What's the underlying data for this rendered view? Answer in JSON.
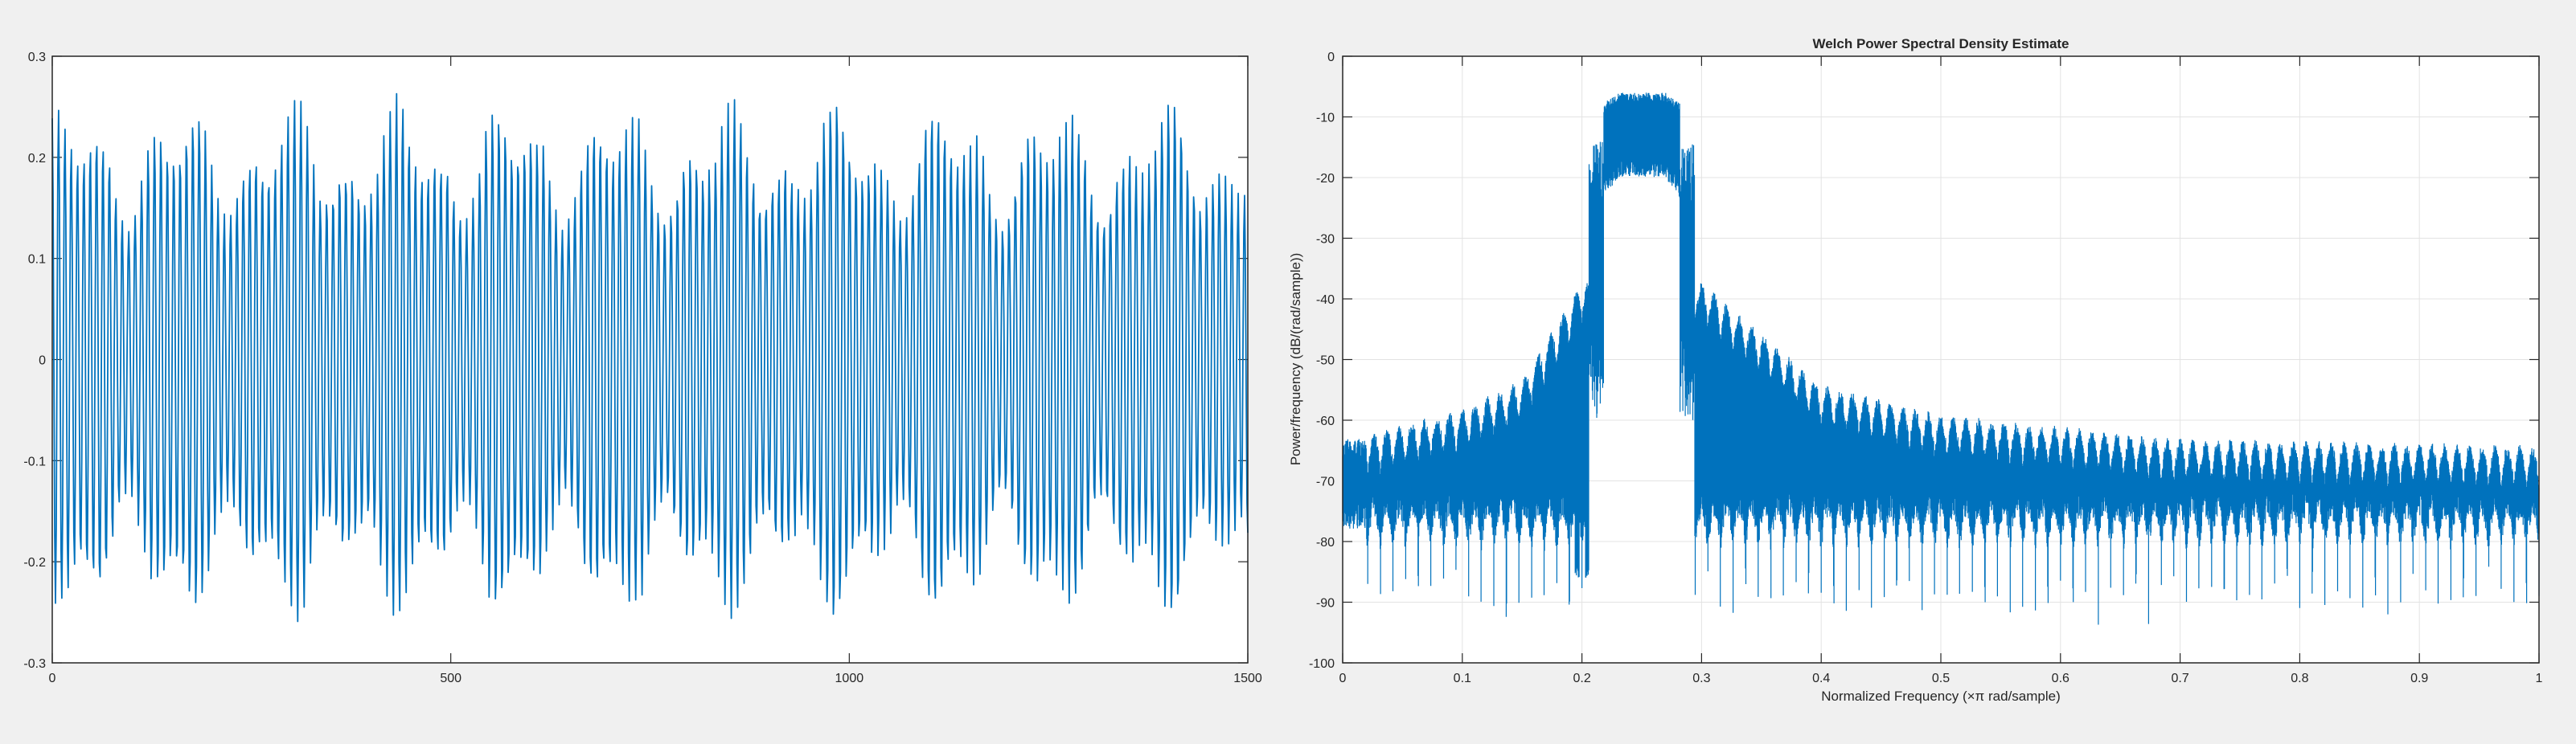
{
  "figure": {
    "background": "#f0f0f0",
    "axes_background": "#ffffff",
    "line_color": "#0072bd",
    "grid_color": "#e3e3e3",
    "axis_color": "#262626"
  },
  "chart_data": [
    {
      "type": "line",
      "title": "",
      "xlabel": "",
      "ylabel": "",
      "xlim": [
        0,
        1500
      ],
      "ylim": [
        -0.3,
        0.3
      ],
      "xticks": [
        0,
        500,
        1000,
        1500
      ],
      "yticks": [
        -0.3,
        -0.2,
        -0.1,
        0,
        0.1,
        0.2,
        0.3
      ],
      "xtick_labels": [
        "0",
        "500",
        "1000",
        "1500"
      ],
      "ytick_labels": [
        "-0.3",
        "-0.2",
        "-0.1",
        "0",
        "0.1",
        "0.2",
        "0.3"
      ],
      "grid": false,
      "series": [
        {
          "color": "#0072bd",
          "n_samples": 1500,
          "peak_amplitude_range": [
            0.13,
            0.26
          ],
          "dominant_normalized_frequency": 0.25,
          "description_of_values": "narrowband oscillation around 0 with beating envelope, amplitudes mostly within ±0.26"
        }
      ]
    },
    {
      "type": "line",
      "title": "Welch Power Spectral Density Estimate",
      "xlabel": "Normalized Frequency  (×π rad/sample)",
      "ylabel": "Power/frequency (dB/(rad/sample))",
      "xlim": [
        0,
        1
      ],
      "ylim": [
        -100,
        0
      ],
      "xticks": [
        0,
        0.1,
        0.2,
        0.3,
        0.4,
        0.5,
        0.6,
        0.7,
        0.8,
        0.9,
        1
      ],
      "yticks": [
        -100,
        -90,
        -80,
        -70,
        -60,
        -50,
        -40,
        -30,
        -20,
        -10,
        0
      ],
      "xtick_labels": [
        "0",
        "0.1",
        "0.2",
        "0.3",
        "0.4",
        "0.5",
        "0.6",
        "0.7",
        "0.8",
        "0.9",
        "1"
      ],
      "ytick_labels": [
        "-100",
        "-90",
        "-80",
        "-70",
        "-60",
        "-50",
        "-40",
        "-30",
        "-20",
        "-10",
        "0"
      ],
      "grid": true,
      "series": [
        {
          "color": "#0072bd",
          "passband": [
            0.21,
            0.29
          ],
          "passband_level_db": [
            -20,
            -6
          ],
          "stopband_peaks_db": [
            {
              "x": 0.0,
              "y": -63
            },
            {
              "x": 0.1,
              "y": -58
            },
            {
              "x": 0.15,
              "y": -53
            },
            {
              "x": 0.2,
              "y": -37
            },
            {
              "x": 0.3,
              "y": -37
            },
            {
              "x": 0.4,
              "y": -54
            },
            {
              "x": 0.5,
              "y": -59
            },
            {
              "x": 0.7,
              "y": -63
            },
            {
              "x": 1.0,
              "y": -64
            }
          ],
          "stopband_floor_db": -78
        }
      ]
    }
  ]
}
